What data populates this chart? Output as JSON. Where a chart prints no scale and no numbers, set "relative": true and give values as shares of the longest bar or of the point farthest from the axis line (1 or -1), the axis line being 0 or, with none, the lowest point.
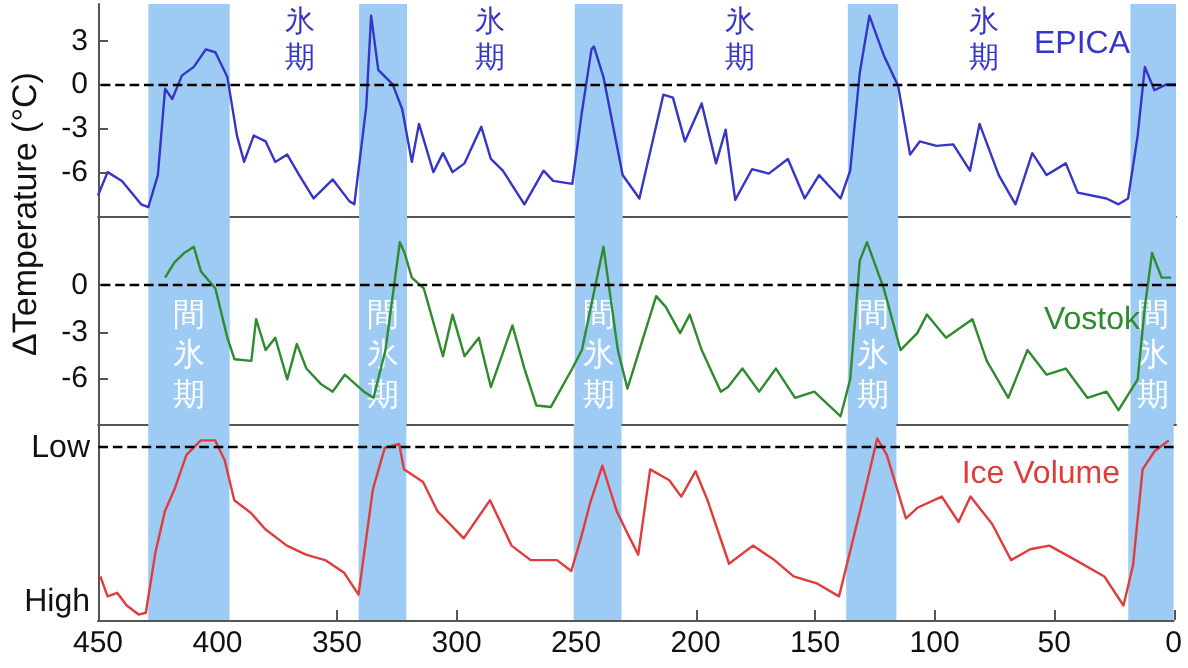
{
  "chart_data": [
    {
      "type": "line",
      "ylabel": "ΔTemperature (°C)",
      "xlim": [
        450,
        0
      ],
      "xticks": [
        450,
        400,
        350,
        300,
        250,
        200,
        150,
        100,
        50,
        0
      ],
      "ylim": [
        -9,
        5.5
      ],
      "yticks": [
        -6,
        -3,
        0,
        3
      ],
      "tick_labels": "y",
      "x": [
        450,
        446,
        440,
        432,
        429,
        425,
        422,
        419,
        415,
        410,
        405,
        401,
        396,
        392,
        389,
        385,
        380,
        376,
        371,
        366,
        360,
        352,
        345,
        343,
        338,
        336,
        333,
        327,
        323,
        319,
        316,
        310,
        306,
        302,
        297,
        290,
        286,
        281,
        272,
        264,
        260,
        252,
        248,
        244,
        243,
        239,
        231,
        224,
        214,
        210,
        205,
        198,
        192,
        188,
        184,
        177,
        170,
        162,
        155,
        149,
        140,
        136,
        132,
        128,
        122,
        116,
        111,
        107,
        100,
        93,
        86,
        82,
        74,
        67,
        60,
        54,
        46,
        41,
        29,
        24,
        20,
        16,
        13,
        9,
        4,
        0
      ],
      "series": [
        {
          "name": "EPICA",
          "color": "#3535c8",
          "values": [
            -7.6,
            -6,
            -6.6,
            -8.2,
            -8.4,
            -6.2,
            -0.3,
            -1,
            0.6,
            1.2,
            2.4,
            2.2,
            0.5,
            -3.5,
            -5.3,
            -3.5,
            -3.9,
            -5.3,
            -4.8,
            -6.2,
            -7.8,
            -6.5,
            -8,
            -8.2,
            -1.5,
            4.7,
            1,
            0,
            -1.7,
            -5.3,
            -2.7,
            -6,
            -4.7,
            -6,
            -5.4,
            -2.9,
            -5.1,
            -5.9,
            -8.2,
            -5.9,
            -6.6,
            -6.8,
            -1.9,
            2.4,
            2.6,
            0.5,
            -6.2,
            -7.8,
            -0.7,
            -0.9,
            -3.9,
            -1.3,
            -5.4,
            -3.1,
            -7.9,
            -5.8,
            -6.1,
            -5.1,
            -7.8,
            -6.2,
            -7.8,
            -5.9,
            0.8,
            4.7,
            2,
            -0.1,
            -4.8,
            -3.9,
            -4.2,
            -4.1,
            -5.9,
            -2.7,
            -6.2,
            -8.2,
            -4.7,
            -6.2,
            -5.4,
            -7.4,
            -7.8,
            -8.2,
            -7.8,
            -3.5,
            1.2,
            -0.4,
            0,
            0
          ]
        }
      ],
      "ref_lines": [
        {
          "axis": "y",
          "value": 0,
          "line_style": "dashed",
          "color": "#000000"
        }
      ],
      "bands": [
        {
          "axis": "x",
          "from": 429,
          "to": 395,
          "color": "#9ecbf3"
        },
        {
          "axis": "x",
          "from": 341,
          "to": 321,
          "color": "#9ecbf3"
        },
        {
          "axis": "x",
          "from": 251,
          "to": 231,
          "color": "#9ecbf3"
        },
        {
          "axis": "x",
          "from": 137,
          "to": 116,
          "color": "#9ecbf3"
        },
        {
          "axis": "x",
          "from": 19,
          "to": 0,
          "color": "#9ecbf3"
        }
      ],
      "annotations": [
        "氷期",
        "氷期",
        "氷期",
        "氷期"
      ]
    },
    {
      "type": "line",
      "xlim": [
        450,
        0
      ],
      "xticks": [
        450,
        400,
        350,
        300,
        250,
        200,
        150,
        100,
        50,
        0
      ],
      "ylim": [
        -9,
        4.5
      ],
      "yticks": [
        -6,
        -3,
        0
      ],
      "tick_labels": "y",
      "x": [
        422,
        418,
        414,
        410,
        407,
        401,
        396,
        393,
        386,
        384,
        380,
        376,
        371,
        367,
        363,
        357,
        352,
        347,
        339,
        335,
        330,
        324,
        322,
        319,
        314,
        306,
        302,
        297,
        291,
        286,
        277,
        272,
        267,
        261,
        252,
        248,
        239,
        233,
        229,
        224,
        217,
        213,
        207,
        203,
        198,
        190,
        187,
        181,
        174,
        167,
        159,
        151,
        140,
        136,
        132,
        129,
        122,
        115,
        108,
        104,
        96,
        85,
        79,
        70,
        62,
        54,
        46,
        37,
        29,
        24,
        16,
        13,
        10,
        6,
        2
      ],
      "series": [
        {
          "name": "Vostok",
          "color": "#2e8b2e",
          "values": [
            0.5,
            1.5,
            2.1,
            2.5,
            0.9,
            -0.2,
            -3.4,
            -4.8,
            -4.9,
            -2.2,
            -4.2,
            -3.4,
            -6.1,
            -3.8,
            -5.4,
            -6.4,
            -6.9,
            -5.8,
            -6.9,
            -7.3,
            -4.2,
            2.8,
            2.1,
            0.5,
            -0.2,
            -4.6,
            -1.9,
            -4.6,
            -3.4,
            -6.6,
            -2.6,
            -5.4,
            -7.8,
            -7.9,
            -5.4,
            -4.2,
            2.5,
            -4.2,
            -6.7,
            -4.2,
            -0.7,
            -1.4,
            -3.1,
            -1.9,
            -4.2,
            -6.9,
            -6.6,
            -5.4,
            -6.9,
            -5.4,
            -7.3,
            -6.9,
            -8.5,
            -6.1,
            1.6,
            2.8,
            -0.2,
            -4.2,
            -3.1,
            -1.9,
            -3.4,
            -2.2,
            -4.9,
            -7.3,
            -4.2,
            -5.8,
            -5.4,
            -7.3,
            -6.9,
            -8.1,
            -6.1,
            -1.4,
            2.1,
            0.5,
            0.5
          ]
        }
      ],
      "ref_lines": [
        {
          "axis": "y",
          "value": 0,
          "line_style": "dashed",
          "color": "#000000"
        }
      ],
      "bands": [
        {
          "axis": "x",
          "from": 429,
          "to": 395,
          "color": "#9ecbf3",
          "label": "間氷期"
        },
        {
          "axis": "x",
          "from": 341,
          "to": 321,
          "color": "#9ecbf3",
          "label": "間氷期"
        },
        {
          "axis": "x",
          "from": 251,
          "to": 231,
          "color": "#9ecbf3",
          "label": "間氷期"
        },
        {
          "axis": "x",
          "from": 137,
          "to": 116,
          "color": "#9ecbf3",
          "label": "間氷期"
        },
        {
          "axis": "x",
          "from": 19,
          "to": 0,
          "color": "#9ecbf3",
          "label": "間氷期"
        }
      ]
    },
    {
      "type": "line",
      "relative": true,
      "xlim": [
        450,
        0
      ],
      "xticks": [
        450,
        400,
        350,
        300,
        250,
        200,
        150,
        100,
        50,
        0
      ],
      "annotations": [
        "Low",
        "High"
      ],
      "x": [
        449,
        446,
        442,
        438,
        433,
        430,
        426,
        422,
        418,
        413,
        407,
        401,
        397,
        393,
        386,
        380,
        371,
        363,
        355,
        347,
        341,
        335,
        330,
        324,
        322,
        314,
        308,
        297,
        286,
        277,
        269,
        258,
        252,
        248,
        244,
        239,
        233,
        229,
        224,
        219,
        211,
        206,
        200,
        195,
        186,
        176,
        167,
        159,
        149,
        140,
        134,
        129,
        124,
        120,
        112,
        107,
        97,
        90,
        85,
        76,
        68,
        60,
        52,
        41,
        29,
        21,
        17,
        13,
        8,
        2
      ],
      "series": [
        {
          "name": "Ice Volume",
          "color": "#e03c3c",
          "values": [
            0.24,
            0.13,
            0.15,
            0.08,
            0.03,
            0.04,
            0.37,
            0.6,
            0.72,
            0.91,
            0.99,
            0.99,
            0.88,
            0.66,
            0.59,
            0.5,
            0.41,
            0.36,
            0.33,
            0.26,
            0.14,
            0.72,
            0.95,
            0.97,
            0.83,
            0.76,
            0.6,
            0.45,
            0.66,
            0.41,
            0.33,
            0.33,
            0.27,
            0.45,
            0.65,
            0.85,
            0.6,
            0.49,
            0.36,
            0.83,
            0.77,
            0.68,
            0.82,
            0.66,
            0.31,
            0.41,
            0.33,
            0.24,
            0.2,
            0.13,
            0.45,
            0.72,
            1,
            0.91,
            0.56,
            0.62,
            0.68,
            0.54,
            0.68,
            0.53,
            0.33,
            0.39,
            0.41,
            0.33,
            0.24,
            0.08,
            0.3,
            0.83,
            0.93,
            0.99
          ]
        }
      ],
      "ref_lines": [
        {
          "axis": "y",
          "value": 0.96,
          "line_style": "dashed",
          "color": "#000000"
        }
      ],
      "bands": [
        {
          "axis": "x",
          "from": 429,
          "to": 395,
          "color": "#9ecbf3"
        },
        {
          "axis": "x",
          "from": 341,
          "to": 321,
          "color": "#9ecbf3"
        },
        {
          "axis": "x",
          "from": 251,
          "to": 231,
          "color": "#9ecbf3"
        },
        {
          "axis": "x",
          "from": 137,
          "to": 116,
          "color": "#9ecbf3"
        },
        {
          "axis": "x",
          "from": 19,
          "to": 0,
          "color": "#9ecbf3"
        }
      ]
    }
  ]
}
